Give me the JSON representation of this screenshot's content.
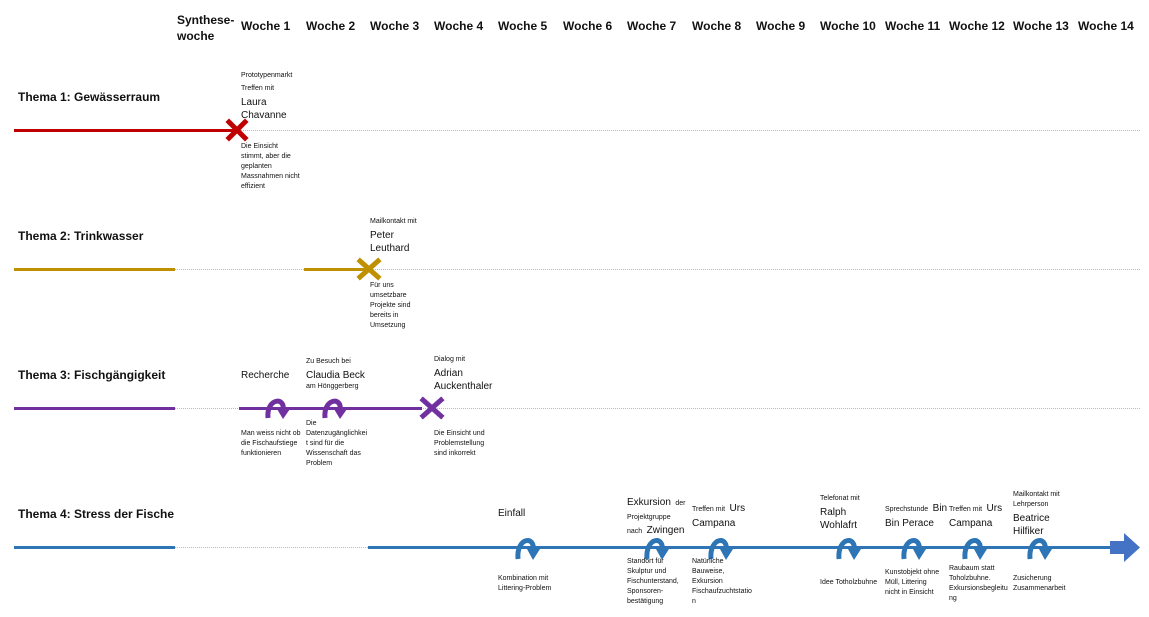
{
  "columns": [
    "Synthese-\nwoche",
    "Woche 1",
    "Woche 2",
    "Woche 3",
    "Woche 4",
    "Woche 5",
    "Woche 6",
    "Woche 7",
    "Woche 8",
    "Woche 9",
    "Woche 10",
    "Woche 11",
    "Woche 12",
    "Woche 13",
    "Woche 14"
  ],
  "themes": [
    {
      "label": "Thema 1: Gewässerraum",
      "color": "#c00000"
    },
    {
      "label": "Thema 2: Trinkwasser",
      "color": "#bf9000"
    },
    {
      "label": "Thema 3: Fischgängigkeit",
      "color": "#7030a0"
    },
    {
      "label": "Thema 4: Stress der Fische",
      "color": "#2e75b6"
    }
  ],
  "t1": {
    "above_small_1": "Prototypenmarkt",
    "above_small_2": "Treffen mit",
    "above_name": "Laura\nChavanne",
    "below": "Die Einsicht\nstimmt, aber die\ngeplanten\nMassnahmen nicht\neffizient"
  },
  "t2": {
    "above_small": "Mailkontakt mit",
    "above_name": "Peter\nLeuthard",
    "below": "Für uns\numsetzbare\nProjekte sind\nbereits in\nUmsetzung"
  },
  "t3": {
    "recherche": "Recherche",
    "besuch_small": "Zu Besuch bei",
    "besuch_name": "Claudia Beck",
    "besuch_place": "am Hönggerberg",
    "dialog_small": "Dialog mit",
    "dialog_name": "Adrian\nAuckenthaler",
    "below_1": "Man weiss nicht ob\ndie Fischaufstiege\nfunktionieren",
    "below_2": "Die\nDatenzugänglichkei\nt sind für die\nWissenschaft das\nProblem",
    "below_3": "Die Einsicht und\nProblemstellung\nsind inkorrekt"
  },
  "t4": {
    "einfall": "Einfall",
    "einfall_below": "Kombination mit\nLittering-Problem",
    "exk_big1": "Exkursion",
    "exk_small1": "der",
    "exk_small2": "Projektgruppe",
    "exk_small3": "nach",
    "exk_big2": "Zwingen",
    "exk_below": "Standort für\nSkulptur und\nFischunterstand,\nSponsoren-\nbestätigung",
    "urs1_small": "Treffen mit",
    "urs1_big": "Urs",
    "urs1_big2": "Campana",
    "urs1_below": "Natürliche\nBauweise,\nExkursion\nFischaufzuchtstatio\nn",
    "ralph_small": "Telefonat mit",
    "ralph_name": "Ralph\nWohlafrt",
    "ralph_below": "Idee Totholzbuhne",
    "bin_small": "Sprechstunde",
    "bin_big": "Bin",
    "bin_big2": "Bin Perace",
    "bin_below": "Kunstobjekt ohne\nMüll, Littering\nnicht in Einsicht",
    "urs2_small": "Treffen mit",
    "urs2_big": "Urs",
    "urs2_big2": "Campana",
    "urs2_below": "Raubaum statt\nToholzbuhne.\nExkursionsbegleitu\nng",
    "bea_small": "Mailkontakt mit\nLehrperson",
    "bea_name": "Beatrice\nHilfiker",
    "bea_below": "Zusicherung\nZusammenarbeit"
  }
}
